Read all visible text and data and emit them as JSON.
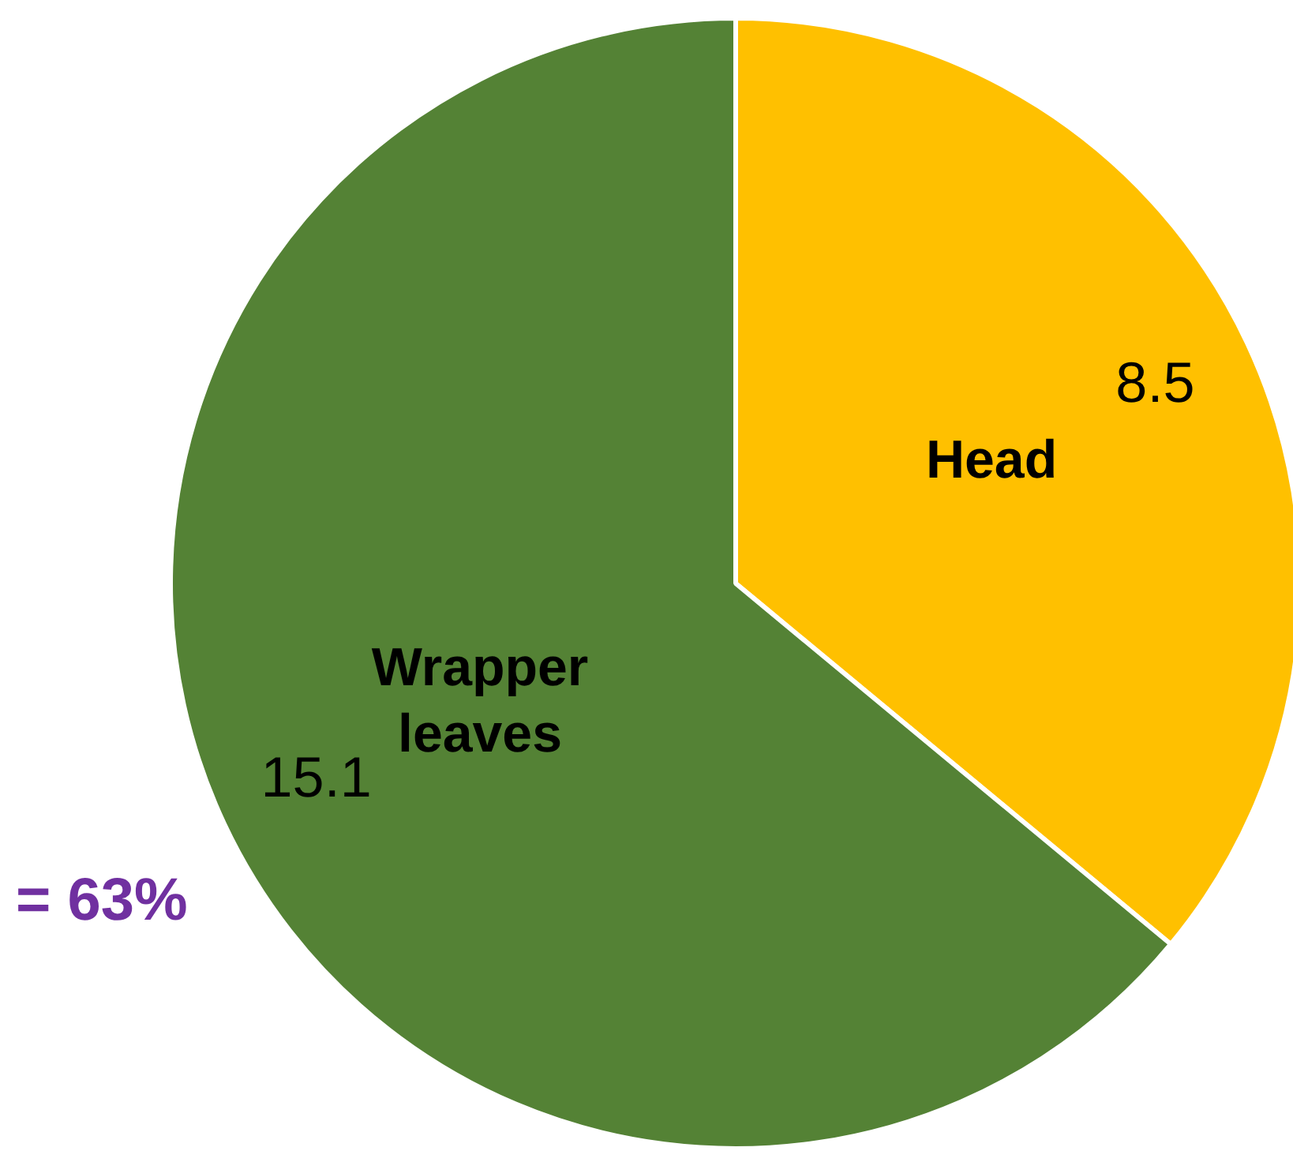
{
  "chart_data": {
    "type": "pie",
    "categories": [
      "Head",
      "Wrapper leaves"
    ],
    "values": [
      8.5,
      15.1
    ],
    "colors": [
      "#ffc000",
      "#548235"
    ],
    "data_labels": true,
    "legend": false,
    "annotations": [
      "= 63%"
    ]
  }
}
